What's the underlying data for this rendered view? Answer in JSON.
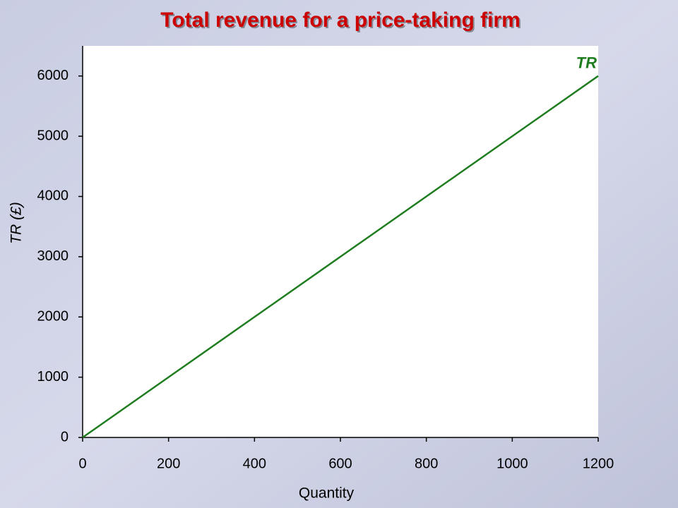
{
  "chart_data": {
    "type": "line",
    "title": "Total revenue for a price-taking firm",
    "x_label": "Quantity",
    "y_label": "TR (£)",
    "x": [
      0,
      1200
    ],
    "series": [
      {
        "name": "TR",
        "color": "#1e7d1e",
        "values": [
          0,
          6000
        ]
      }
    ],
    "xlim": [
      0,
      1200
    ],
    "xticks": [
      0,
      200,
      400,
      600,
      800,
      1000,
      1200
    ],
    "ylim": [
      0,
      6500
    ],
    "yticks": [
      0,
      1000,
      2000,
      3000,
      4000,
      5000,
      6000
    ],
    "grid": false
  }
}
